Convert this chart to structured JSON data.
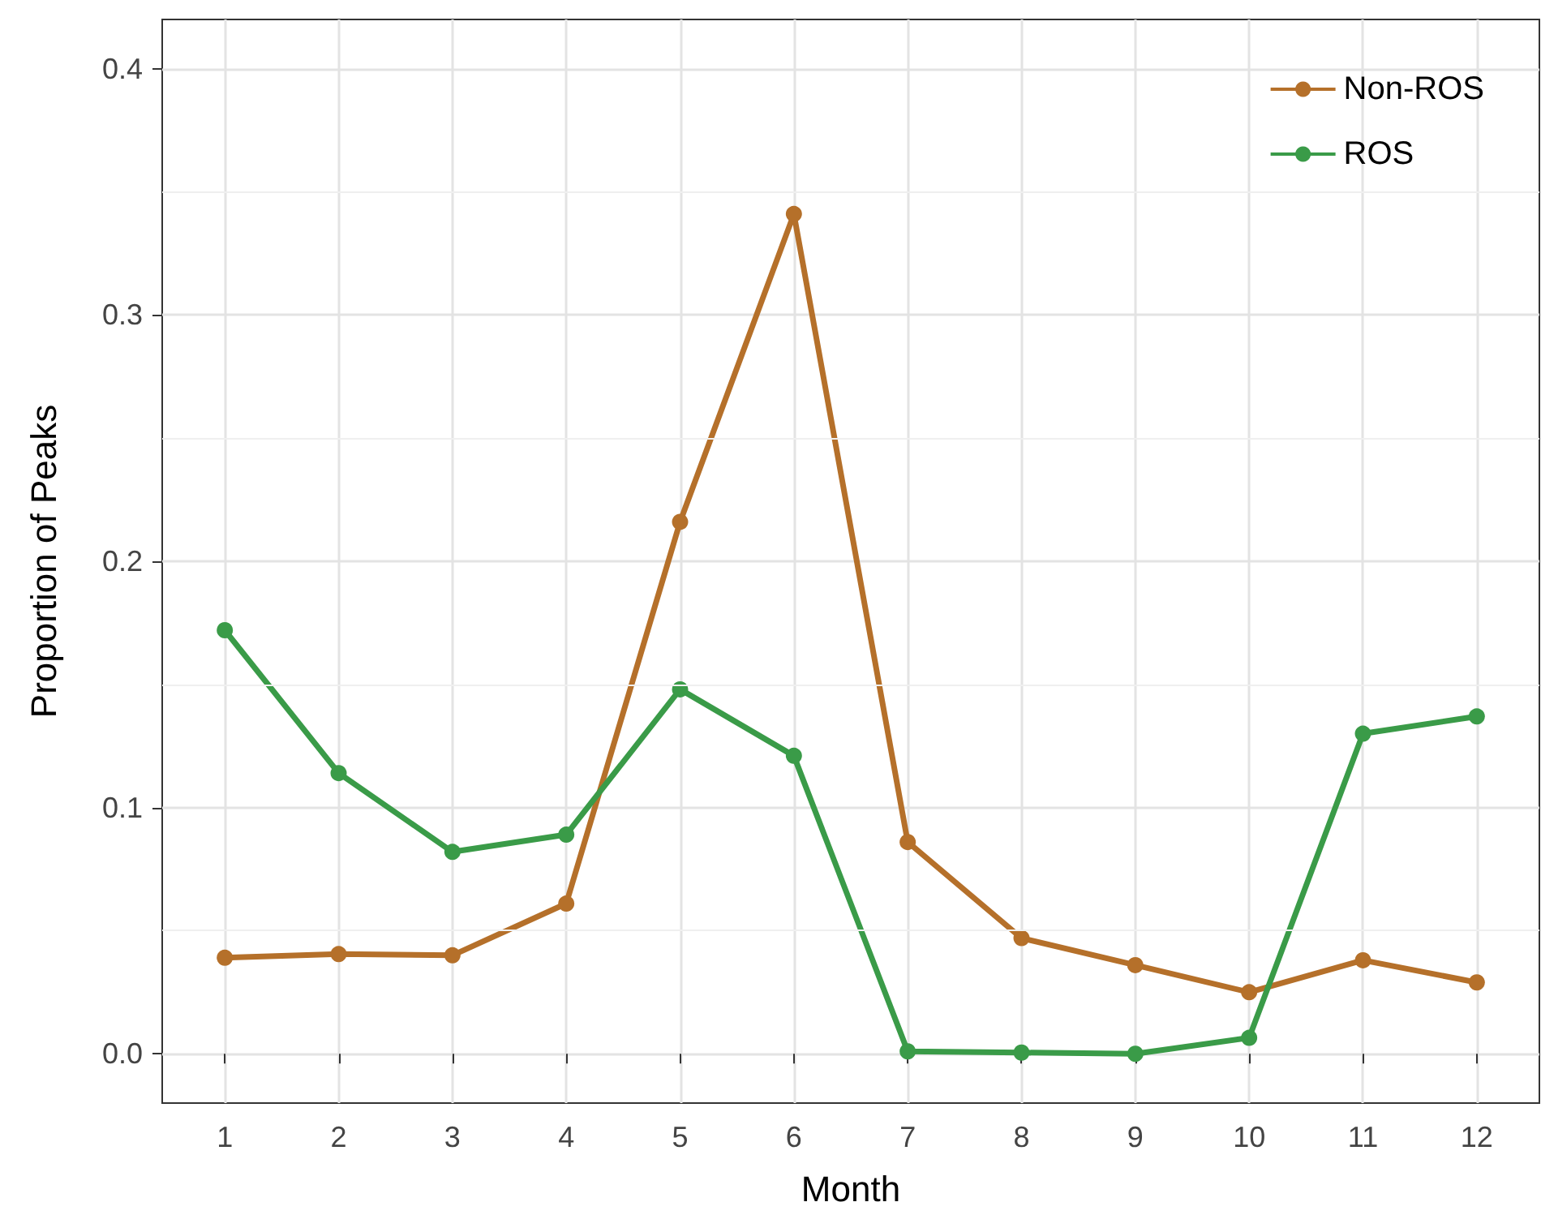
{
  "chart_data": {
    "type": "line",
    "xlabel": "Month",
    "ylabel": "Proportion of Peaks",
    "x": [
      1,
      2,
      3,
      4,
      5,
      6,
      7,
      8,
      9,
      10,
      11,
      12
    ],
    "series": [
      {
        "name": "Non-ROS",
        "color": "#b5702a",
        "values": [
          0.039,
          0.0405,
          0.04,
          0.061,
          0.216,
          0.341,
          0.086,
          0.047,
          0.036,
          0.025,
          0.038,
          0.029
        ]
      },
      {
        "name": "ROS",
        "color": "#3a9b48",
        "values": [
          0.172,
          0.114,
          0.082,
          0.089,
          0.148,
          0.121,
          0.001,
          0.0005,
          0.0,
          0.0065,
          0.13,
          0.137
        ]
      }
    ],
    "xlim": [
      0.45,
      12.55
    ],
    "xticks": [
      1,
      2,
      3,
      4,
      5,
      6,
      7,
      8,
      9,
      10,
      11,
      12
    ],
    "ylim": [
      -0.02,
      0.42
    ],
    "yticks": [
      {
        "value": 0,
        "label": "0.0"
      },
      {
        "value": 0.1,
        "label": "0.1"
      },
      {
        "value": 0.2,
        "label": "0.2"
      },
      {
        "value": 0.3,
        "label": "0.3"
      },
      {
        "value": 0.4,
        "label": "0.4"
      }
    ],
    "grid": true,
    "legend": "top right",
    "marker": "circle",
    "line_style": "solid"
  }
}
